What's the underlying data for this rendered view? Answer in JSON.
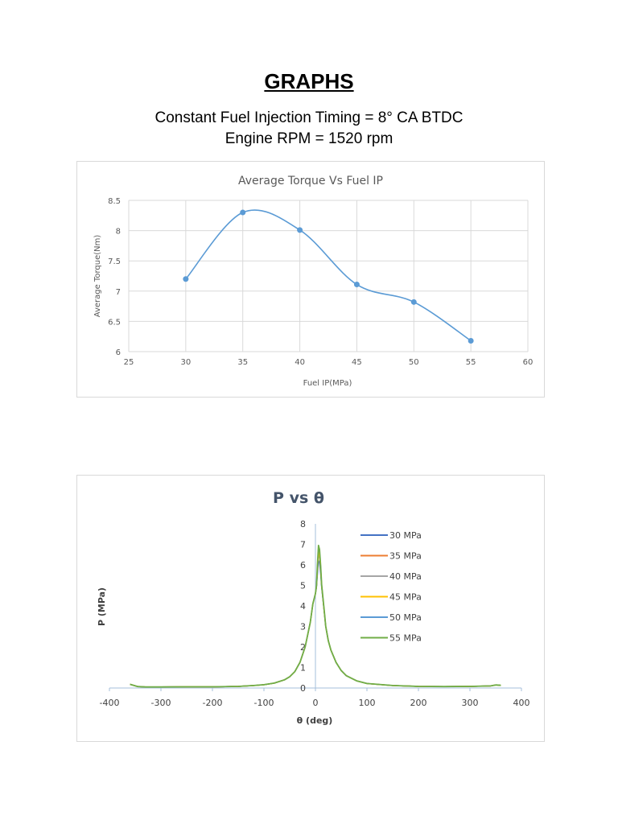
{
  "page": {
    "heading": "GRAPHS",
    "subtitle_line1": "Constant Fuel Injection Timing = 8° CA BTDC",
    "subtitle_line2": "Engine RPM = 1520 rpm"
  },
  "chart_data": [
    {
      "type": "line",
      "title": "Average Torque Vs Fuel IP",
      "xlabel": "Fuel IP(MPa)",
      "ylabel": "Average Torque(Nm)",
      "xlim": [
        25,
        60
      ],
      "ylim": [
        6,
        8.5
      ],
      "xticks": [
        "25",
        "30",
        "35",
        "40",
        "45",
        "50",
        "55",
        "60"
      ],
      "yticks": [
        "6",
        "6.5",
        "7",
        "7.5",
        "8",
        "8.5"
      ],
      "grid": true,
      "smooth": true,
      "markers": true,
      "color": "#5b9bd5",
      "series": [
        {
          "x": [
            30,
            35,
            40,
            45,
            50,
            55
          ],
          "values": [
            7.2,
            8.3,
            8.01,
            7.11,
            6.82,
            6.18
          ]
        }
      ]
    },
    {
      "type": "line",
      "title": "P vs θ",
      "xlabel": "θ (deg)",
      "ylabel": "P (MPa)",
      "xlim": [
        -400,
        400
      ],
      "ylim": [
        0,
        8
      ],
      "xticks": [
        "-400",
        "-300",
        "-200",
        "-100",
        "0",
        "100",
        "200",
        "300",
        "400"
      ],
      "yticks": [
        "0",
        "1",
        "2",
        "3",
        "4",
        "5",
        "6",
        "7",
        "8"
      ],
      "grid": false,
      "legend_position": "right",
      "theta": [
        -360,
        -345,
        -330,
        -300,
        -250,
        -200,
        -150,
        -120,
        -100,
        -80,
        -60,
        -50,
        -40,
        -30,
        -20,
        -10,
        -5,
        0,
        2,
        4,
        6,
        8,
        10,
        12,
        15,
        18,
        20,
        25,
        30,
        40,
        50,
        60,
        80,
        100,
        150,
        200,
        250,
        300,
        340,
        350,
        360
      ],
      "series": [
        {
          "name": "30 MPa",
          "color": "#4472c4",
          "peak": 6.2,
          "values": [
            0.18,
            0.07,
            0.05,
            0.05,
            0.06,
            0.06,
            0.08,
            0.12,
            0.16,
            0.24,
            0.4,
            0.55,
            0.8,
            1.25,
            2.0,
            3.2,
            4.1,
            4.6,
            4.9,
            5.6,
            6.2,
            6.1,
            5.6,
            4.9,
            4.2,
            3.5,
            3.0,
            2.3,
            1.85,
            1.25,
            0.85,
            0.6,
            0.35,
            0.22,
            0.12,
            0.08,
            0.07,
            0.08,
            0.1,
            0.15,
            0.13
          ]
        },
        {
          "name": "35 MPa",
          "color": "#ed7d31",
          "peak": 6.7,
          "values": [
            0.18,
            0.07,
            0.05,
            0.05,
            0.06,
            0.06,
            0.08,
            0.12,
            0.16,
            0.24,
            0.4,
            0.55,
            0.8,
            1.25,
            2.0,
            3.2,
            4.1,
            4.6,
            4.95,
            5.9,
            6.7,
            6.5,
            5.9,
            5.0,
            4.25,
            3.5,
            3.0,
            2.3,
            1.85,
            1.25,
            0.85,
            0.6,
            0.35,
            0.22,
            0.12,
            0.08,
            0.07,
            0.08,
            0.1,
            0.15,
            0.13
          ]
        },
        {
          "name": "40 MPa",
          "color": "#a5a5a5",
          "peak": 6.8,
          "values": [
            0.18,
            0.07,
            0.05,
            0.05,
            0.06,
            0.06,
            0.08,
            0.12,
            0.16,
            0.24,
            0.4,
            0.55,
            0.8,
            1.25,
            2.0,
            3.2,
            4.1,
            4.6,
            4.95,
            6.0,
            6.8,
            6.6,
            5.95,
            5.0,
            4.25,
            3.5,
            3.0,
            2.3,
            1.85,
            1.25,
            0.85,
            0.6,
            0.35,
            0.22,
            0.12,
            0.08,
            0.07,
            0.08,
            0.1,
            0.15,
            0.13
          ]
        },
        {
          "name": "45 MPa",
          "color": "#ffc000",
          "peak": 6.6,
          "values": [
            0.18,
            0.07,
            0.05,
            0.05,
            0.06,
            0.06,
            0.08,
            0.12,
            0.16,
            0.24,
            0.4,
            0.55,
            0.8,
            1.25,
            2.0,
            3.2,
            4.1,
            4.6,
            4.95,
            5.85,
            6.6,
            6.4,
            5.85,
            5.0,
            4.25,
            3.5,
            3.0,
            2.3,
            1.85,
            1.25,
            0.85,
            0.6,
            0.35,
            0.22,
            0.12,
            0.08,
            0.07,
            0.08,
            0.1,
            0.15,
            0.13
          ]
        },
        {
          "name": "50 MPa",
          "color": "#5b9bd5",
          "peak": 6.5,
          "values": [
            0.18,
            0.07,
            0.05,
            0.05,
            0.06,
            0.06,
            0.08,
            0.12,
            0.16,
            0.24,
            0.4,
            0.55,
            0.8,
            1.25,
            2.0,
            3.2,
            4.1,
            4.6,
            4.95,
            5.8,
            6.5,
            6.35,
            5.8,
            4.95,
            4.25,
            3.5,
            3.0,
            2.3,
            1.85,
            1.25,
            0.85,
            0.6,
            0.35,
            0.22,
            0.12,
            0.08,
            0.07,
            0.08,
            0.1,
            0.15,
            0.13
          ]
        },
        {
          "name": "55 MPa",
          "color": "#70ad47",
          "peak": 6.95,
          "values": [
            0.18,
            0.07,
            0.05,
            0.05,
            0.06,
            0.06,
            0.08,
            0.12,
            0.16,
            0.24,
            0.4,
            0.55,
            0.8,
            1.25,
            2.0,
            3.2,
            4.1,
            4.6,
            5.0,
            6.1,
            6.95,
            6.75,
            6.0,
            5.05,
            4.3,
            3.55,
            3.0,
            2.3,
            1.85,
            1.25,
            0.85,
            0.6,
            0.35,
            0.22,
            0.12,
            0.08,
            0.07,
            0.08,
            0.1,
            0.15,
            0.13
          ]
        }
      ]
    }
  ]
}
